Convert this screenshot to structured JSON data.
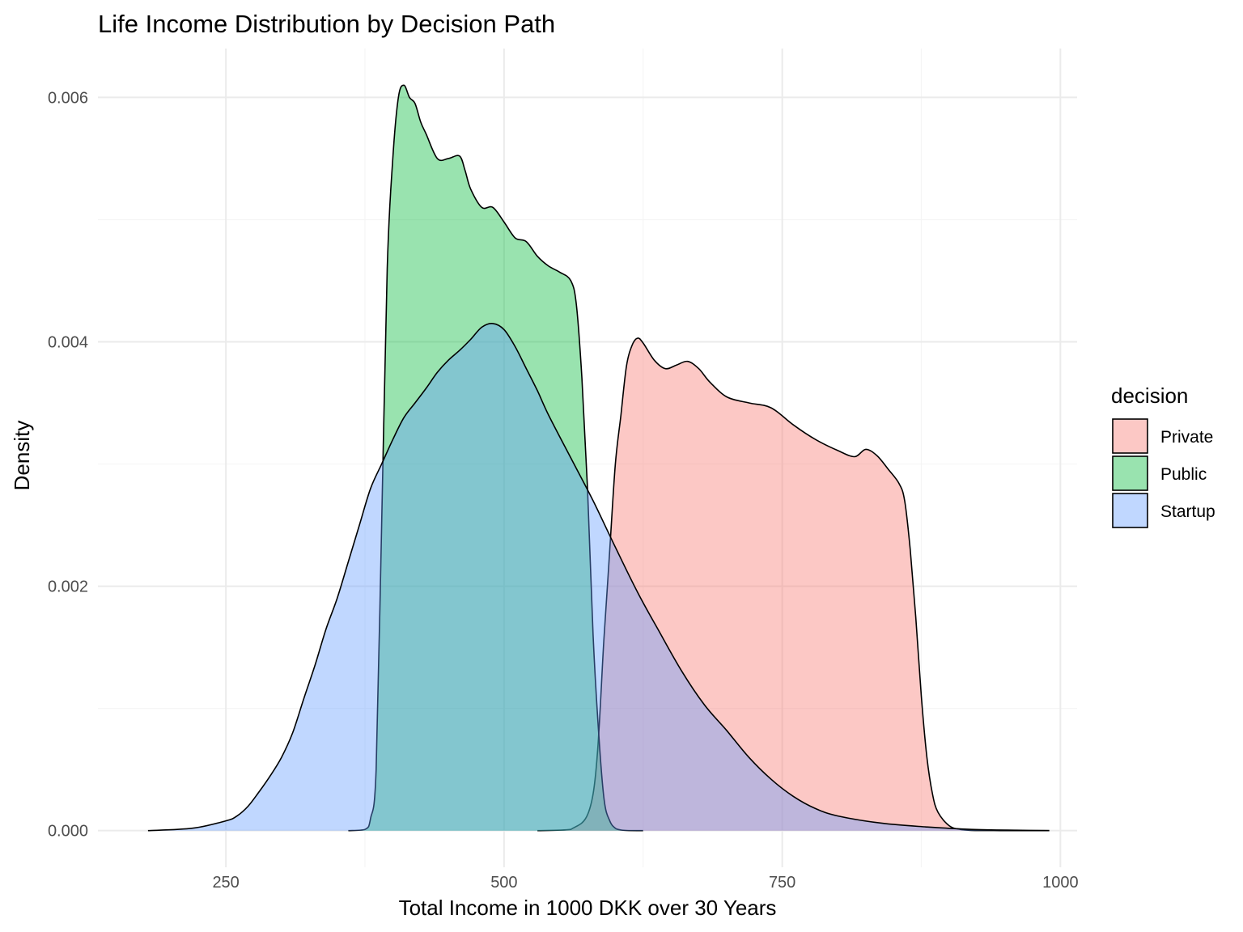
{
  "chart_data": {
    "type": "area",
    "title": "Life Income Distribution by Decision Path",
    "xlabel": "Total Income in 1000 DKK over 30 Years",
    "ylabel": "Density",
    "xlim": [
      135,
      1015
    ],
    "ylim": [
      -0.0003,
      0.0064
    ],
    "x_ticks": [
      250,
      500,
      750,
      1000
    ],
    "x_tick_labels": [
      "250",
      "500",
      "750",
      "1000"
    ],
    "y_ticks": [
      0.0,
      0.002,
      0.004,
      0.006
    ],
    "y_tick_labels": [
      "0.000",
      "0.002",
      "0.004",
      "0.006"
    ],
    "x_minor": [
      375,
      625,
      875
    ],
    "y_minor": [
      0.001,
      0.003,
      0.005
    ],
    "grid": true,
    "legend": {
      "title": "decision",
      "position": "right"
    },
    "series": [
      {
        "name": "Private",
        "color": "#F8766D",
        "x": [
          530,
          560,
          580,
          590,
          595,
          600,
          605,
          610,
          615,
          620,
          625,
          635,
          645,
          655,
          665,
          675,
          685,
          700,
          720,
          740,
          760,
          780,
          800,
          815,
          825,
          835,
          845,
          855,
          860,
          865,
          870,
          875,
          880,
          885,
          890,
          900,
          910,
          920,
          940,
          960,
          990
        ],
        "y": [
          0,
          1e-05,
          0.0003,
          0.0016,
          0.0023,
          0.003,
          0.0034,
          0.0038,
          0.00397,
          0.00403,
          0.00399,
          0.00385,
          0.00378,
          0.00381,
          0.00384,
          0.00378,
          0.00367,
          0.00355,
          0.0035,
          0.00346,
          0.00332,
          0.0032,
          0.00311,
          0.00306,
          0.00312,
          0.00307,
          0.00296,
          0.00284,
          0.0027,
          0.0023,
          0.00175,
          0.0011,
          0.0006,
          0.0003,
          0.00015,
          4e-05,
          1e-05,
          2e-06,
          5e-07,
          2e-07,
          0
        ]
      },
      {
        "name": "Public",
        "color": "#00BA38",
        "x": [
          360,
          375,
          380,
          385,
          390,
          395,
          400,
          405,
          410,
          415,
          420,
          425,
          430,
          440,
          450,
          460,
          465,
          470,
          480,
          490,
          500,
          510,
          520,
          530,
          540,
          550,
          560,
          565,
          570,
          575,
          580,
          585,
          590,
          595,
          600,
          605,
          610,
          625
        ],
        "y": [
          0,
          1e-05,
          0.0001,
          0.0005,
          0.0025,
          0.0046,
          0.0055,
          0.006,
          0.0061,
          0.006,
          0.00595,
          0.0058,
          0.0057,
          0.0055,
          0.0055,
          0.00552,
          0.0054,
          0.00525,
          0.0051,
          0.0051,
          0.00498,
          0.00485,
          0.00482,
          0.0047,
          0.00462,
          0.00457,
          0.0045,
          0.0043,
          0.0037,
          0.0028,
          0.0016,
          0.0008,
          0.00025,
          8e-05,
          2e-05,
          5e-06,
          1e-06,
          0
        ]
      },
      {
        "name": "Startup",
        "color": "#619CFF",
        "x": [
          180,
          220,
          250,
          260,
          270,
          280,
          290,
          300,
          310,
          320,
          330,
          340,
          350,
          360,
          370,
          380,
          390,
          400,
          410,
          420,
          430,
          440,
          450,
          460,
          470,
          480,
          490,
          500,
          510,
          520,
          530,
          540,
          560,
          580,
          600,
          620,
          640,
          660,
          680,
          700,
          720,
          740,
          760,
          780,
          800,
          840,
          880,
          920,
          960,
          990
        ],
        "y": [
          0,
          2e-05,
          8e-05,
          0.00012,
          0.0002,
          0.00032,
          0.00045,
          0.0006,
          0.0008,
          0.00108,
          0.00135,
          0.00165,
          0.0019,
          0.0022,
          0.0025,
          0.0028,
          0.003,
          0.0032,
          0.00338,
          0.0035,
          0.00362,
          0.00375,
          0.00385,
          0.00393,
          0.00402,
          0.00412,
          0.00415,
          0.0041,
          0.00396,
          0.00378,
          0.0036,
          0.0034,
          0.00305,
          0.0027,
          0.00232,
          0.00195,
          0.00162,
          0.0013,
          0.00103,
          0.00082,
          0.0006,
          0.00042,
          0.00028,
          0.00018,
          0.00012,
          6e-05,
          3e-05,
          1e-05,
          3e-06,
          0
        ]
      }
    ]
  }
}
